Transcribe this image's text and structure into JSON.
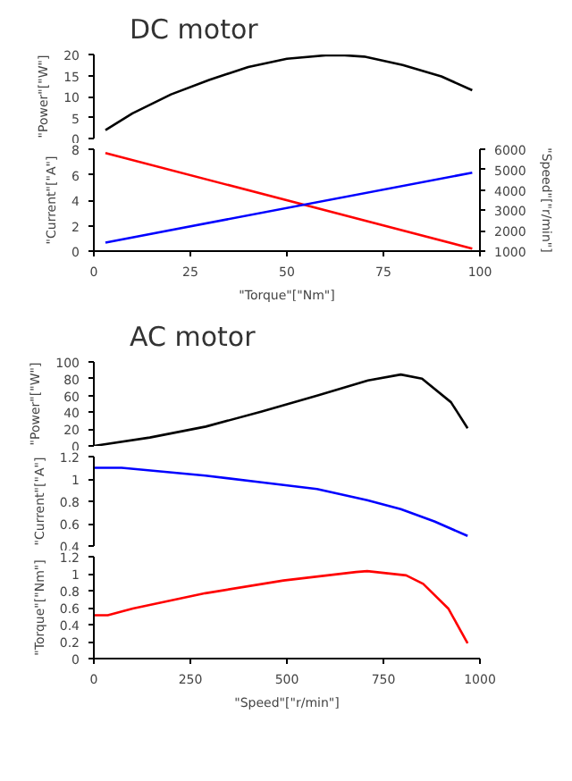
{
  "chart_data": [
    {
      "type": "line",
      "title": "DC motor",
      "ylabel": "\"Power\"[\"W\"]",
      "xlim": [
        0,
        100
      ],
      "xticks": [
        0,
        25,
        50,
        75,
        100
      ],
      "ylim": [
        0,
        20
      ],
      "yticks": [
        0,
        5,
        10,
        15,
        20
      ],
      "tick_labels": "y",
      "grid": false,
      "series": [
        {
          "color": "#000000",
          "x": [
            3,
            10,
            20,
            30,
            40,
            50,
            60,
            65,
            70,
            80,
            90,
            98
          ],
          "values": [
            2,
            6,
            10.5,
            14,
            17,
            19,
            19.8,
            19.8,
            19.5,
            17.5,
            14.8,
            11.5
          ]
        }
      ]
    },
    {
      "type": "line",
      "xlabel": "\"Torque\"[\"Nm\"]",
      "ylabel": "\"Current\"[\"A\"]",
      "y2label": "\"Speed\"[\"r/min\"]",
      "xlim": [
        0,
        100
      ],
      "xticks": [
        0,
        25,
        50,
        75,
        100
      ],
      "ylim": [
        0,
        8
      ],
      "yticks": [
        0,
        2,
        4,
        6,
        8
      ],
      "y2lim": [
        1000,
        6000
      ],
      "y2ticks": [
        1000,
        2000,
        3000,
        4000,
        5000,
        6000
      ],
      "grid": false,
      "series": [
        {
          "color": "#ff0000",
          "x": [
            3,
            98
          ],
          "values": [
            7.7,
            0.2
          ]
        },
        {
          "color": "#0000ff",
          "axis": "y2",
          "x": [
            3,
            98
          ],
          "values": [
            1420,
            4850
          ]
        }
      ]
    },
    {
      "type": "line",
      "title": "AC motor",
      "ylabel": "\"Power\"[\"W\"]",
      "xlim": [
        0,
        1000
      ],
      "xticks": [
        0,
        250,
        500,
        750,
        1000
      ],
      "ylim": [
        0,
        100
      ],
      "yticks": [
        0,
        20,
        40,
        60,
        80,
        100
      ],
      "tick_labels": "y",
      "grid": false,
      "series": [
        {
          "color": "#000000",
          "x": [
            0,
            145,
            290,
            435,
            580,
            710,
            795,
            850,
            925,
            968
          ],
          "values": [
            0,
            10,
            23,
            41,
            60,
            78,
            85,
            80,
            52,
            21
          ]
        }
      ]
    },
    {
      "type": "line",
      "ylabel": "\"Current\"[\"A\"]",
      "xlim": [
        0,
        1000
      ],
      "xticks": [
        0,
        250,
        500,
        750,
        1000
      ],
      "ylim": [
        0.4,
        1.2
      ],
      "yticks": [
        {
          "value": 0.4,
          "label": "0.4"
        },
        {
          "value": 0.6,
          "label": "0.6"
        },
        {
          "value": 0.8,
          "label": "0.8"
        },
        1,
        {
          "value": 1.2,
          "label": "1.2"
        }
      ],
      "tick_labels": "y",
      "grid": false,
      "series": [
        {
          "color": "#0000ff",
          "x": [
            0,
            72,
            289,
            434,
            578,
            708,
            795,
            882,
            968
          ],
          "values": [
            1.1,
            1.1,
            1.03,
            0.97,
            0.91,
            0.81,
            0.73,
            0.62,
            0.49
          ]
        }
      ]
    },
    {
      "type": "line",
      "xlabel": "\"Speed\"[\"r/min\"]",
      "ylabel": "\"Torque\"[\"Nm\"]",
      "xlim": [
        0,
        1000
      ],
      "xticks": [
        0,
        250,
        500,
        750,
        1000
      ],
      "ylim": [
        0,
        1.2
      ],
      "yticks": [
        0,
        {
          "value": 0.2,
          "label": "0.2"
        },
        {
          "value": 0.4,
          "label": "0.4"
        },
        {
          "value": 0.6,
          "label": "0.6"
        },
        {
          "value": 0.8,
          "label": "0.8"
        },
        1,
        {
          "value": 1.2,
          "label": "1.2"
        }
      ],
      "grid": false,
      "series": [
        {
          "color": "#ff0000",
          "x": [
            0,
            36,
            101,
            289,
            491,
            679,
            708,
            809,
            853,
            918,
            968
          ],
          "values": [
            0.51,
            0.51,
            0.59,
            0.77,
            0.92,
            1.02,
            1.03,
            0.98,
            0.88,
            0.59,
            0.18
          ]
        }
      ]
    }
  ]
}
